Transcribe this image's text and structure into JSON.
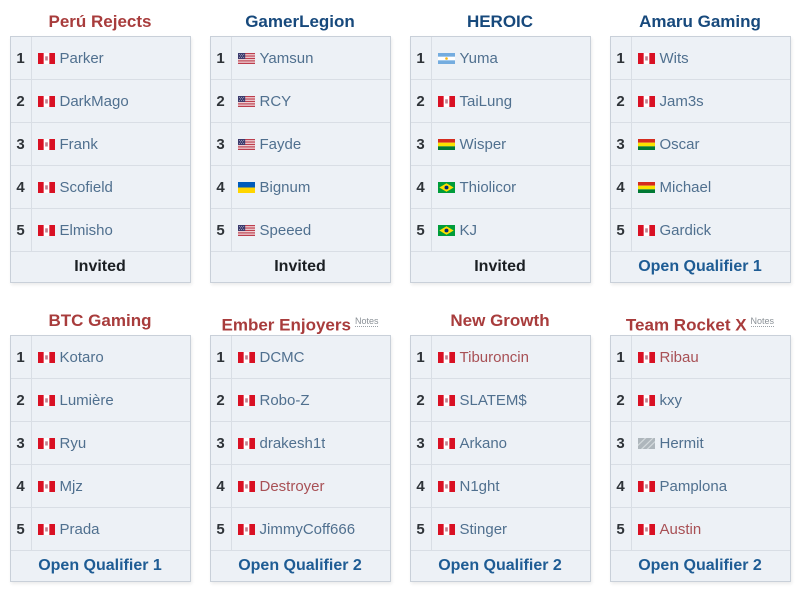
{
  "colors": {
    "team_link_red": "#a83c3c",
    "team_link_blue": "#17497c",
    "player_link_normal": "#50708f",
    "player_link_red": "#a85055",
    "qualifier_link_blue": "#1e5c94",
    "invited_text": "#1b1f23",
    "row_background": "#edf1f6"
  },
  "notes_label": "Notes",
  "teams": [
    {
      "name": "Perú Rejects",
      "name_color": "red",
      "notes": null,
      "qualifier": "Invited",
      "qualifier_style": "invited",
      "players": [
        {
          "slot": "1",
          "flag": "pe",
          "flag_name": "peru",
          "name": "Parker",
          "link": "normal"
        },
        {
          "slot": "2",
          "flag": "pe",
          "flag_name": "peru",
          "name": "DarkMago",
          "link": "normal"
        },
        {
          "slot": "3",
          "flag": "pe",
          "flag_name": "peru",
          "name": "Frank",
          "link": "normal"
        },
        {
          "slot": "4",
          "flag": "pe",
          "flag_name": "peru",
          "name": "Scofield",
          "link": "normal"
        },
        {
          "slot": "5",
          "flag": "pe",
          "flag_name": "peru",
          "name": "Elmisho",
          "link": "normal"
        }
      ]
    },
    {
      "name": "GamerLegion",
      "name_color": "blue",
      "notes": null,
      "qualifier": "Invited",
      "qualifier_style": "invited",
      "players": [
        {
          "slot": "1",
          "flag": "us",
          "flag_name": "usa",
          "name": "Yamsun",
          "link": "normal"
        },
        {
          "slot": "2",
          "flag": "us",
          "flag_name": "usa",
          "name": "RCY",
          "link": "normal"
        },
        {
          "slot": "3",
          "flag": "us",
          "flag_name": "usa",
          "name": "Fayde",
          "link": "normal"
        },
        {
          "slot": "4",
          "flag": "ua",
          "flag_name": "ukraine",
          "name": "Bignum",
          "link": "normal"
        },
        {
          "slot": "5",
          "flag": "us",
          "flag_name": "usa",
          "name": "Speeed",
          "link": "normal"
        }
      ]
    },
    {
      "name": "HEROIC",
      "name_color": "blue",
      "notes": null,
      "qualifier": "Invited",
      "qualifier_style": "invited",
      "players": [
        {
          "slot": "1",
          "flag": "ar",
          "flag_name": "argentina",
          "name": "Yuma",
          "link": "normal"
        },
        {
          "slot": "2",
          "flag": "pe",
          "flag_name": "peru",
          "name": "TaiLung",
          "link": "normal"
        },
        {
          "slot": "3",
          "flag": "bo",
          "flag_name": "bolivia",
          "name": "Wisper",
          "link": "normal"
        },
        {
          "slot": "4",
          "flag": "br",
          "flag_name": "brazil",
          "name": "Thiolicor",
          "link": "normal"
        },
        {
          "slot": "5",
          "flag": "br",
          "flag_name": "brazil",
          "name": "KJ",
          "link": "normal"
        }
      ]
    },
    {
      "name": "Amaru Gaming",
      "name_color": "blue",
      "notes": null,
      "qualifier": "Open Qualifier 1",
      "qualifier_style": "link",
      "players": [
        {
          "slot": "1",
          "flag": "pe",
          "flag_name": "peru",
          "name": "Wits",
          "link": "normal"
        },
        {
          "slot": "2",
          "flag": "pe",
          "flag_name": "peru",
          "name": "Jam3s",
          "link": "normal"
        },
        {
          "slot": "3",
          "flag": "bo",
          "flag_name": "bolivia",
          "name": "Oscar",
          "link": "normal"
        },
        {
          "slot": "4",
          "flag": "bo",
          "flag_name": "bolivia",
          "name": "Michael",
          "link": "normal"
        },
        {
          "slot": "5",
          "flag": "pe",
          "flag_name": "peru",
          "name": "Gardick",
          "link": "normal"
        }
      ]
    },
    {
      "name": "BTC Gaming",
      "name_color": "red",
      "notes": null,
      "qualifier": "Open Qualifier 1",
      "qualifier_style": "link",
      "players": [
        {
          "slot": "1",
          "flag": "pe",
          "flag_name": "peru",
          "name": "Kotaro",
          "link": "normal"
        },
        {
          "slot": "2",
          "flag": "pe",
          "flag_name": "peru",
          "name": "Lumière",
          "link": "normal"
        },
        {
          "slot": "3",
          "flag": "pe",
          "flag_name": "peru",
          "name": "Ryu",
          "link": "normal"
        },
        {
          "slot": "4",
          "flag": "pe",
          "flag_name": "peru",
          "name": "Mjz",
          "link": "normal"
        },
        {
          "slot": "5",
          "flag": "pe",
          "flag_name": "peru",
          "name": "Prada",
          "link": "normal"
        }
      ]
    },
    {
      "name": "Ember Enjoyers",
      "name_color": "red",
      "notes": "Notes",
      "qualifier": "Open Qualifier 2",
      "qualifier_style": "link",
      "players": [
        {
          "slot": "1",
          "flag": "pe",
          "flag_name": "peru",
          "name": "DCMC",
          "link": "normal"
        },
        {
          "slot": "2",
          "flag": "pe",
          "flag_name": "peru",
          "name": "Robo-Z",
          "link": "normal"
        },
        {
          "slot": "3",
          "flag": "pe",
          "flag_name": "peru",
          "name": "drakesh1t",
          "link": "normal"
        },
        {
          "slot": "4",
          "flag": "pe",
          "flag_name": "peru",
          "name": "Destroyer",
          "link": "red"
        },
        {
          "slot": "5",
          "flag": "pe",
          "flag_name": "peru",
          "name": "JimmyCoff666",
          "link": "normal"
        }
      ]
    },
    {
      "name": "New Growth",
      "name_color": "red",
      "notes": null,
      "qualifier": "Open Qualifier 2",
      "qualifier_style": "link",
      "players": [
        {
          "slot": "1",
          "flag": "pe",
          "flag_name": "peru",
          "name": "Tiburoncin",
          "link": "red"
        },
        {
          "slot": "2",
          "flag": "pe",
          "flag_name": "peru",
          "name": "SLATEM$",
          "link": "normal"
        },
        {
          "slot": "3",
          "flag": "pe",
          "flag_name": "peru",
          "name": "Arkano",
          "link": "normal"
        },
        {
          "slot": "4",
          "flag": "pe",
          "flag_name": "peru",
          "name": "N1ght",
          "link": "normal"
        },
        {
          "slot": "5",
          "flag": "pe",
          "flag_name": "peru",
          "name": "Stinger",
          "link": "normal"
        }
      ]
    },
    {
      "name": "Team Rocket X",
      "name_color": "red",
      "notes": "Notes",
      "qualifier": "Open Qualifier 2",
      "qualifier_style": "link",
      "players": [
        {
          "slot": "1",
          "flag": "pe",
          "flag_name": "peru",
          "name": "Ribau",
          "link": "red"
        },
        {
          "slot": "2",
          "flag": "pe",
          "flag_name": "peru",
          "name": "kxy",
          "link": "normal"
        },
        {
          "slot": "3",
          "flag": "unknown",
          "flag_name": "unknown",
          "name": "Hermit",
          "link": "normal"
        },
        {
          "slot": "4",
          "flag": "pe",
          "flag_name": "peru",
          "name": "Pamplona",
          "link": "normal"
        },
        {
          "slot": "5",
          "flag": "pe",
          "flag_name": "peru",
          "name": "Austin",
          "link": "red"
        }
      ]
    }
  ]
}
